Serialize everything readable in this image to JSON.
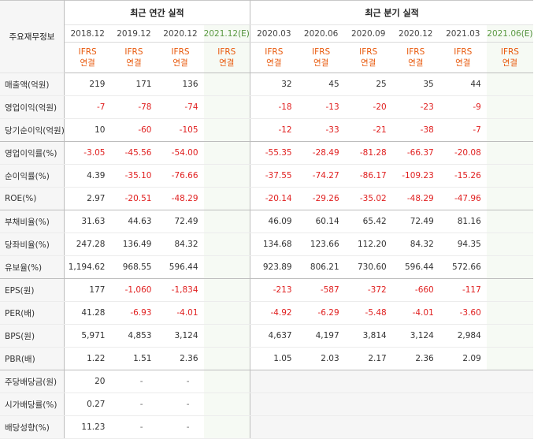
{
  "header": {
    "label_head": "주요재무정보",
    "annual_title": "최근 연간 실적",
    "quarter_title": "최근 분기 실적",
    "annual_periods": [
      "2018.12",
      "2019.12",
      "2020.12",
      "2021.12"
    ],
    "annual_est_mark": "(E)",
    "quarter_periods": [
      "2020.03",
      "2020.06",
      "2020.09",
      "2020.12",
      "2021.03",
      "2021.06"
    ],
    "quarter_est_mark": "(E)",
    "ifrs_line1": "IFRS",
    "ifrs_line2": "연결"
  },
  "rows": [
    {
      "label": "매출액(억원)",
      "annual": [
        "219",
        "171",
        "136",
        ""
      ],
      "quarter": [
        "32",
        "45",
        "25",
        "35",
        "44",
        ""
      ]
    },
    {
      "label": "영업이익(억원)",
      "annual": [
        "-7",
        "-78",
        "-74",
        ""
      ],
      "quarter": [
        "-18",
        "-13",
        "-20",
        "-23",
        "-9",
        ""
      ]
    },
    {
      "label": "당기순이익(억원)",
      "annual": [
        "10",
        "-60",
        "-105",
        ""
      ],
      "quarter": [
        "-12",
        "-33",
        "-21",
        "-38",
        "-7",
        ""
      ]
    },
    {
      "label": "영업이익률(%)",
      "annual": [
        "-3.05",
        "-45.56",
        "-54.00",
        ""
      ],
      "quarter": [
        "-55.35",
        "-28.49",
        "-81.28",
        "-66.37",
        "-20.08",
        ""
      ]
    },
    {
      "label": "순이익률(%)",
      "annual": [
        "4.39",
        "-35.10",
        "-76.66",
        ""
      ],
      "quarter": [
        "-37.55",
        "-74.27",
        "-86.17",
        "-109.23",
        "-15.26",
        ""
      ]
    },
    {
      "label": "ROE(%)",
      "annual": [
        "2.97",
        "-20.51",
        "-48.29",
        ""
      ],
      "quarter": [
        "-20.14",
        "-29.26",
        "-35.02",
        "-48.29",
        "-47.96",
        ""
      ]
    },
    {
      "label": "부채비율(%)",
      "annual": [
        "31.63",
        "44.63",
        "72.49",
        ""
      ],
      "quarter": [
        "46.09",
        "60.14",
        "65.42",
        "72.49",
        "81.16",
        ""
      ]
    },
    {
      "label": "당좌비율(%)",
      "annual": [
        "247.28",
        "136.49",
        "84.32",
        ""
      ],
      "quarter": [
        "134.68",
        "123.66",
        "112.20",
        "84.32",
        "94.35",
        ""
      ]
    },
    {
      "label": "유보율(%)",
      "annual": [
        "1,194.62",
        "968.55",
        "596.44",
        ""
      ],
      "quarter": [
        "923.89",
        "806.21",
        "730.60",
        "596.44",
        "572.66",
        ""
      ]
    },
    {
      "label": "EPS(원)",
      "annual": [
        "177",
        "-1,060",
        "-1,834",
        ""
      ],
      "quarter": [
        "-213",
        "-587",
        "-372",
        "-660",
        "-117",
        ""
      ]
    },
    {
      "label": "PER(배)",
      "annual": [
        "41.28",
        "-6.93",
        "-4.01",
        ""
      ],
      "quarter": [
        "-4.92",
        "-6.29",
        "-5.48",
        "-4.01",
        "-3.60",
        ""
      ]
    },
    {
      "label": "BPS(원)",
      "annual": [
        "5,971",
        "4,853",
        "3,124",
        ""
      ],
      "quarter": [
        "4,637",
        "4,197",
        "3,814",
        "3,124",
        "2,984",
        ""
      ]
    },
    {
      "label": "PBR(배)",
      "annual": [
        "1.22",
        "1.51",
        "2.36",
        ""
      ],
      "quarter": [
        "1.05",
        "2.03",
        "2.17",
        "2.36",
        "2.09",
        ""
      ]
    },
    {
      "label": "주당배당금(원)",
      "annual": [
        "20",
        "-",
        "-",
        ""
      ],
      "quarter": [
        "",
        "",
        "",
        "",
        "",
        ""
      ]
    },
    {
      "label": "시가배당률(%)",
      "annual": [
        "0.27",
        "-",
        "-",
        ""
      ],
      "quarter": [
        "",
        "",
        "",
        "",
        "",
        ""
      ]
    },
    {
      "label": "배당성향(%)",
      "annual": [
        "11.23",
        "-",
        "-",
        ""
      ],
      "quarter": [
        "",
        "",
        "",
        "",
        "",
        ""
      ]
    }
  ],
  "colors": {
    "negative": "#e02020",
    "ifrs": "#e8590c",
    "estimate_mark": "#4f8f38",
    "label_bg": "#f6f6f6",
    "estimate_bg": "#f6faf4"
  }
}
